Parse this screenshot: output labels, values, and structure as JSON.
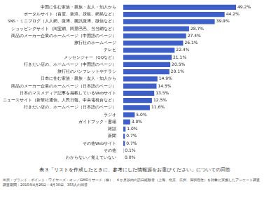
{
  "chart_data": {
    "type": "bar",
    "orientation": "horizontal",
    "title": "表３「リストを作成したときに、参考にした情報源をお選びください」についての回答",
    "annotations": [
      "出所：ブランド・ポイント・ワイヤーズ・オン／GMOリサーチ（株）、６か月以内の訪日経験者（上海、北京、広州、深圳在住）を対象に実施したアンケート調査",
      "調査期間：2015年4月26日～4月30日、355人の回答"
    ],
    "categories": [
      "中国に住む家族・親族・友人・知人から",
      "ポータルサイト（百度、新浪、捜狐、網易など）",
      "SNS・ミニブログ（人人網、微博、騰訊微博、微信など）",
      "ショッピングサイト（淘宝網、阿里巴巴、当当網など）",
      "商品のメーカー企業のホームページ（中国語のページ）",
      "旅行社のホームページ",
      "テレビ",
      "メッセンジャー（QQなど）",
      "行きたい店の、ホームページ（中国語のページ）",
      "旅行社のパンフレットやチラシ",
      "日本に住む家族・親族・友人・知人から",
      "商品のメーカー企業のホームページ（日本語のページ）",
      "日本のマスメディア記事を掲載しているWebサイト",
      "ニュースサイト（新華社通信、人民日報、中央電視台など）",
      "行きたい店の、ホームページ（日本語のページ）",
      "ラジオ",
      "ガイドブック・書籍",
      "雑誌",
      "新聞",
      "その他Webサイト",
      "その他",
      "わからない／覚えていない"
    ],
    "values": [
      49.2,
      44.2,
      39.9,
      28.7,
      27.4,
      26.1,
      22.4,
      21.1,
      20.5,
      20.1,
      14.9,
      14.5,
      13.5,
      12.5,
      11.6,
      5.0,
      3.0,
      1.0,
      0.7,
      0.7,
      0.1,
      0.0
    ],
    "value_labels": [
      "49.2%",
      "44.2%",
      "39.9%",
      "28.7%",
      "27.4%",
      "26.1%",
      "22.4%",
      "21.1%",
      "20.5%",
      "20.1%",
      "14.9%",
      "14.5%",
      "13.5%",
      "12.5%",
      "11.6%",
      "5.0%",
      "3.0%",
      "1.0%",
      "0.7%",
      "0.7%",
      "0.1%",
      "0.0%"
    ],
    "data_labels": true,
    "color": "#3f5fc8",
    "xlim": [
      0,
      55
    ],
    "grid": false,
    "tick_labels": "y"
  }
}
